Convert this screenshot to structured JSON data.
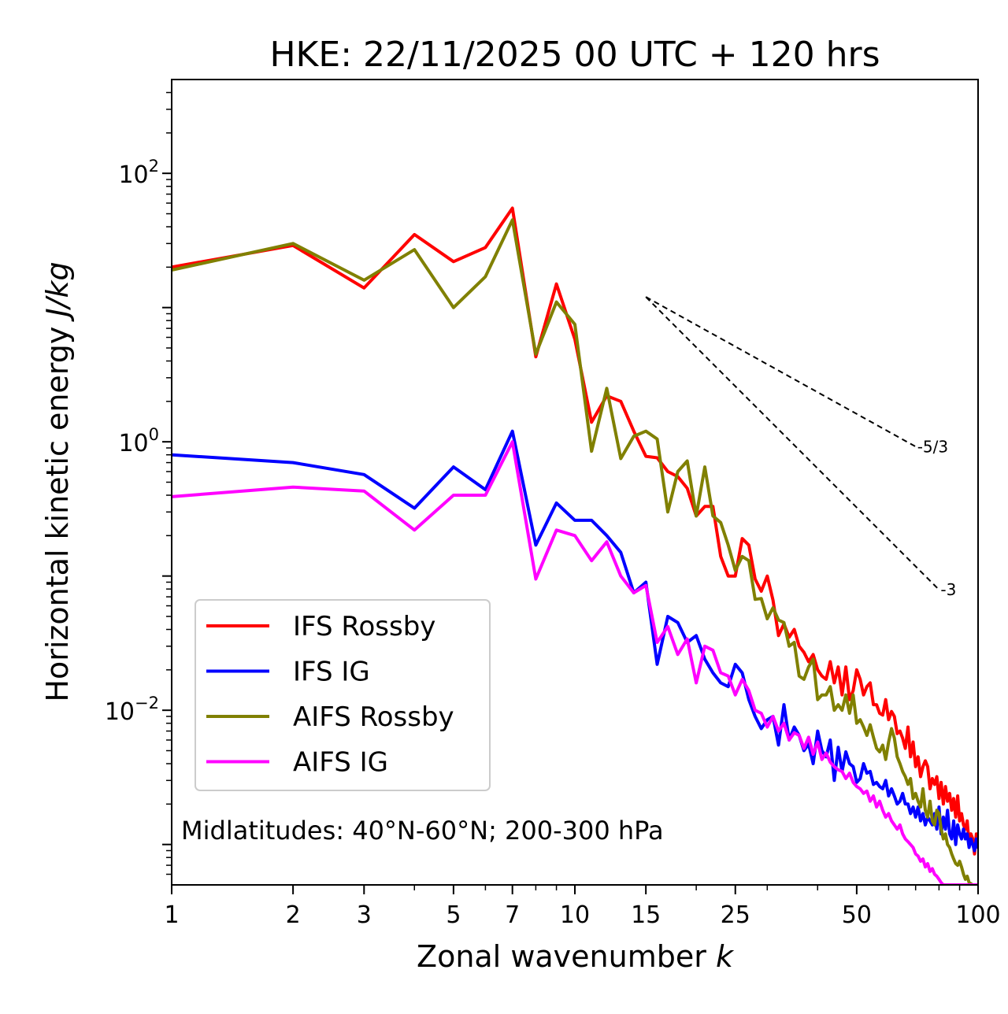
{
  "chart_data": {
    "type": "line",
    "title": "HKE: 22/11/2025 00 UTC + 120 hrs",
    "xlabel_main": "Zonal wavenumber ",
    "xlabel_sym": "k",
    "ylabel_main": "Horizontal kinetic energy ",
    "ylabel_sym": "J/kg",
    "xscale": "log",
    "yscale": "log",
    "xlim": [
      1,
      100
    ],
    "ylim": [
      0.0005,
      500
    ],
    "xticks": [
      1,
      2,
      3,
      5,
      7,
      10,
      15,
      25,
      50,
      100
    ],
    "xtick_labels": [
      "1",
      "2",
      "3",
      "5",
      "7",
      "10",
      "15",
      "25",
      "50",
      "100"
    ],
    "yticks": [
      {
        "value": 100,
        "base": "10",
        "exp": "2"
      },
      {
        "value": 1,
        "base": "10",
        "exp": "0"
      },
      {
        "value": 0.01,
        "base": "10",
        "exp": "−2"
      }
    ],
    "annotation": "Midlatitudes: 40°N-60°N; 200-300 hPa",
    "legend_position": "lower-left",
    "reference_slopes": [
      {
        "label": "-5/3",
        "slope": -1.6667,
        "x_start": 15,
        "x_end": 70,
        "y_start": 12
      },
      {
        "label": "-3",
        "slope": -3,
        "x_start": 15,
        "x_end": 80,
        "y_start": 12
      }
    ],
    "x": [
      1,
      2,
      3,
      4,
      5,
      6,
      7,
      8,
      9,
      10,
      11,
      12,
      13,
      14,
      15,
      16,
      17,
      18,
      19,
      20,
      21,
      22,
      23,
      24,
      25,
      26,
      27,
      28,
      29,
      30,
      31,
      32,
      33,
      34,
      35,
      36,
      37,
      38,
      39,
      40,
      41,
      42,
      43,
      44,
      45,
      46,
      47,
      48,
      49,
      50,
      51,
      52,
      53,
      54,
      55,
      56,
      57,
      58,
      59,
      60,
      61,
      62,
      63,
      64,
      65,
      66,
      67,
      68,
      69,
      70,
      71,
      72,
      73,
      74,
      75,
      76,
      77,
      78,
      79,
      80,
      81,
      82,
      83,
      84,
      85,
      86,
      87,
      88,
      89,
      90,
      91,
      92,
      93,
      94,
      95,
      96,
      97,
      98,
      99,
      100
    ],
    "series": [
      {
        "name": "IFS Rossby",
        "color": "#ff0000",
        "values": [
          20.0,
          29.0,
          14.0,
          35.0,
          22.0,
          28.0,
          55.0,
          4.3,
          15.0,
          5.8,
          1.4,
          2.2,
          2.0,
          1.2,
          0.78,
          0.76,
          0.6,
          0.55,
          0.45,
          0.28,
          0.33,
          0.33,
          0.14,
          0.1,
          0.1,
          0.19,
          0.17,
          0.095,
          0.077,
          0.1,
          0.066,
          0.036,
          0.044,
          0.035,
          0.04,
          0.03,
          0.027,
          0.023,
          0.026,
          0.02,
          0.018,
          0.017,
          0.023,
          0.016,
          0.021,
          0.013,
          0.021,
          0.012,
          0.014,
          0.02,
          0.017,
          0.013,
          0.015,
          0.016,
          0.011,
          0.011,
          0.0095,
          0.0092,
          0.012,
          0.0085,
          0.0098,
          0.009,
          0.0067,
          0.007,
          0.0062,
          0.0052,
          0.0075,
          0.0045,
          0.0058,
          0.0038,
          0.0045,
          0.0032,
          0.0038,
          0.0042,
          0.0038,
          0.0026,
          0.0031,
          0.0028,
          0.0032,
          0.0022,
          0.0029,
          0.002,
          0.0027,
          0.0021,
          0.0024,
          0.0018,
          0.0022,
          0.0016,
          0.0023,
          0.0015,
          0.0017,
          0.0014,
          0.0013,
          0.0015,
          0.001,
          0.0012,
          0.0011,
          0.00085,
          0.0012,
          0.00095
        ]
      },
      {
        "name": "IFS IG",
        "color": "#0000ff",
        "values": [
          0.8,
          0.7,
          0.57,
          0.32,
          0.65,
          0.44,
          1.2,
          0.17,
          0.35,
          0.26,
          0.26,
          0.2,
          0.15,
          0.075,
          0.09,
          0.022,
          0.05,
          0.045,
          0.032,
          0.036,
          0.024,
          0.019,
          0.016,
          0.015,
          0.022,
          0.019,
          0.012,
          0.009,
          0.0073,
          0.0085,
          0.009,
          0.0055,
          0.011,
          0.006,
          0.0075,
          0.0065,
          0.005,
          0.0056,
          0.004,
          0.007,
          0.005,
          0.0045,
          0.006,
          0.003,
          0.0053,
          0.0035,
          0.0049,
          0.004,
          0.0038,
          0.0029,
          0.0031,
          0.004,
          0.0034,
          0.0035,
          0.0028,
          0.0029,
          0.0027,
          0.0026,
          0.003,
          0.0023,
          0.0026,
          0.0023,
          0.002,
          0.0021,
          0.0024,
          0.002,
          0.002,
          0.0017,
          0.0019,
          0.0016,
          0.0019,
          0.0015,
          0.0017,
          0.0014,
          0.0016,
          0.0015,
          0.0014,
          0.0017,
          0.0013,
          0.0019,
          0.0012,
          0.0016,
          0.0013,
          0.0018,
          0.0012,
          0.0011,
          0.0015,
          0.001,
          0.0014,
          0.0012,
          0.0011,
          0.0013,
          0.0011,
          0.0012,
          0.00095,
          0.0011,
          0.001,
          0.0009,
          0.0011,
          0.00095
        ]
      },
      {
        "name": "AIFS Rossby",
        "color": "#808000",
        "values": [
          19.0,
          30.0,
          16.0,
          27.0,
          10.0,
          17.0,
          45.0,
          4.5,
          11.0,
          7.5,
          0.85,
          2.5,
          0.75,
          1.1,
          1.2,
          1.05,
          0.3,
          0.6,
          0.72,
          0.28,
          0.65,
          0.28,
          0.25,
          0.17,
          0.11,
          0.14,
          0.13,
          0.067,
          0.068,
          0.048,
          0.058,
          0.047,
          0.045,
          0.03,
          0.032,
          0.018,
          0.017,
          0.021,
          0.024,
          0.012,
          0.013,
          0.013,
          0.015,
          0.01,
          0.011,
          0.01,
          0.013,
          0.0095,
          0.013,
          0.008,
          0.0085,
          0.0075,
          0.0065,
          0.0078,
          0.0063,
          0.0052,
          0.0049,
          0.0055,
          0.0043,
          0.0058,
          0.0073,
          0.0062,
          0.0045,
          0.004,
          0.0035,
          0.0032,
          0.0028,
          0.0031,
          0.0022,
          0.0024,
          0.0021,
          0.0019,
          0.0026,
          0.0018,
          0.0016,
          0.0021,
          0.0015,
          0.0014,
          0.0018,
          0.0017,
          0.0013,
          0.0011,
          0.0012,
          0.001,
          0.00095,
          0.00085,
          0.00078,
          0.00072,
          0.0007,
          0.00075,
          0.00068,
          0.0006,
          0.00055,
          0.00058,
          0.00052,
          0.00051,
          0.0005,
          0.0005,
          0.0005,
          0.0005
        ]
      },
      {
        "name": "AIFS IG",
        "color": "#ff00ff",
        "values": [
          0.39,
          0.46,
          0.43,
          0.22,
          0.4,
          0.4,
          1.0,
          0.095,
          0.22,
          0.2,
          0.13,
          0.18,
          0.1,
          0.075,
          0.085,
          0.032,
          0.042,
          0.026,
          0.034,
          0.016,
          0.03,
          0.028,
          0.019,
          0.018,
          0.013,
          0.017,
          0.014,
          0.01,
          0.0095,
          0.0075,
          0.009,
          0.007,
          0.008,
          0.006,
          0.0068,
          0.0065,
          0.0052,
          0.0063,
          0.0047,
          0.0058,
          0.0043,
          0.0048,
          0.0041,
          0.0038,
          0.0036,
          0.0035,
          0.0031,
          0.0034,
          0.0029,
          0.0027,
          0.0026,
          0.0024,
          0.0025,
          0.0021,
          0.0023,
          0.0019,
          0.0021,
          0.0018,
          0.0016,
          0.0017,
          0.0015,
          0.0014,
          0.0013,
          0.0014,
          0.0012,
          0.0011,
          0.00105,
          0.001,
          0.00095,
          0.00085,
          0.00082,
          0.00075,
          0.00078,
          0.00068,
          0.00072,
          0.00063,
          0.00066,
          0.0006,
          0.00058,
          0.00055,
          0.00052,
          0.0005,
          0.0005,
          0.0005,
          0.0005,
          0.0005,
          0.0005,
          0.0005,
          0.0005,
          0.0005,
          0.0005,
          0.0005,
          0.0005,
          0.0005,
          0.0005,
          0.0005,
          0.0005,
          0.0005,
          0.0005,
          0.0005
        ]
      }
    ]
  }
}
